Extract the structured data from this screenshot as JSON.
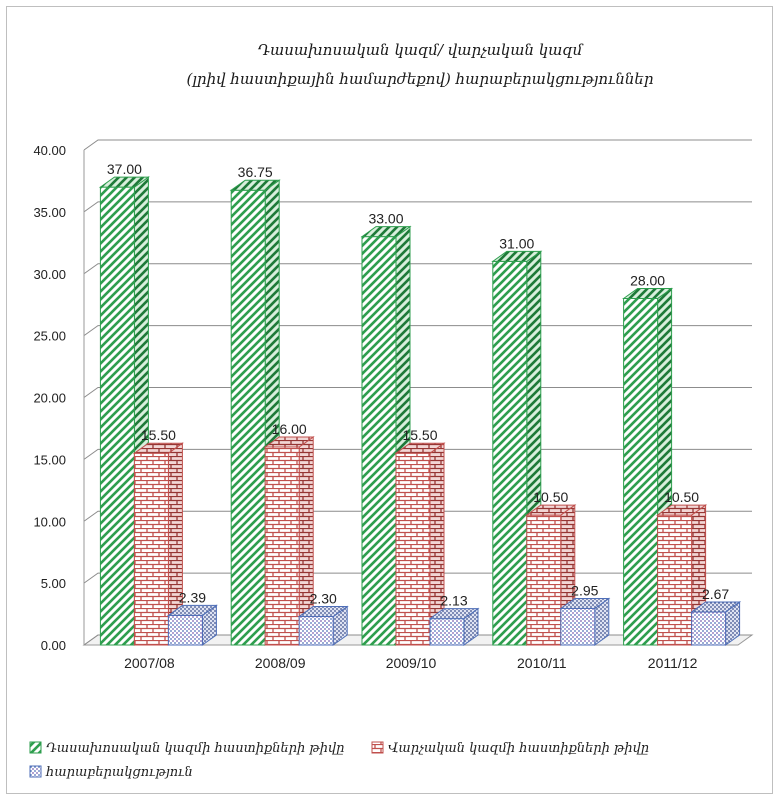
{
  "chart_data": {
    "type": "bar",
    "title": "Դասախոսական կազմ/ վարչական կազմ",
    "subtitle": "(լրիվ հաստիքային համարժեքով) հարաբերակցություններ",
    "categories": [
      "2007/08",
      "2008/09",
      "2009/10",
      "2010/11",
      "2011/12"
    ],
    "series": [
      {
        "name": "Դասախոսական կազմի հաստիքների թիվը",
        "values": [
          37.0,
          36.75,
          33.0,
          31.0,
          28.0
        ],
        "labels": [
          "37.00",
          "36.75",
          "33.00",
          "31.00",
          "28.00"
        ],
        "color": "#2e9e4e",
        "pattern": "diagonal-stripes"
      },
      {
        "name": "Վարչական կազմի հաստիքների թիվը",
        "values": [
          15.5,
          16.0,
          15.5,
          10.5,
          10.5
        ],
        "labels": [
          "15.50",
          "16.00",
          "15.50",
          "10.50",
          "10.50"
        ],
        "color": "#c0504d",
        "pattern": "bricks"
      },
      {
        "name": "հարաբերակցություն",
        "values": [
          2.39,
          2.3,
          2.13,
          2.95,
          2.67
        ],
        "labels": [
          "2.39",
          "2.30",
          "2.13",
          "2.95",
          "2.67"
        ],
        "color": "#4f6fb8",
        "pattern": "dots"
      }
    ],
    "yticks": [
      "0.00",
      "5.00",
      "10.00",
      "15.00",
      "20.00",
      "25.00",
      "30.00",
      "35.00",
      "40.00"
    ],
    "ylim": [
      0,
      40
    ],
    "grid": true,
    "legend_position": "bottom",
    "style": "3d-clustered-column"
  }
}
